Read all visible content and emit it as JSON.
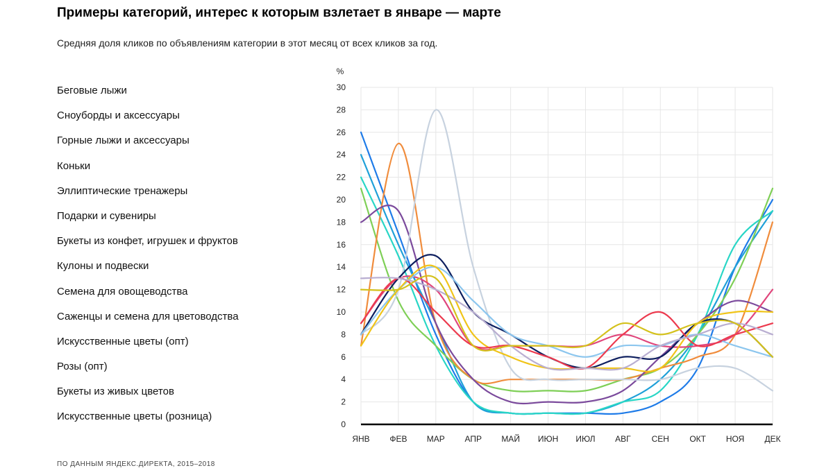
{
  "title": "Примеры категорий, интерес к которым взлетает в январе — марте",
  "subtitle": "Средняя доля кликов по объявлениям категории в этот месяц от всех кликов за год.",
  "source": "ПО ДАННЫМ ЯНДЕКС.ДИРЕКТА, 2015–2018",
  "chart_data": {
    "type": "line",
    "ylabel": "%",
    "ylim": [
      0,
      30
    ],
    "yticks": [
      0,
      2,
      4,
      6,
      8,
      10,
      12,
      14,
      16,
      18,
      20,
      22,
      24,
      26,
      28,
      30
    ],
    "categories": [
      "ЯНВ",
      "ФЕВ",
      "МАР",
      "АПР",
      "МАЙ",
      "ИЮН",
      "ИЮЛ",
      "АВГ",
      "СЕН",
      "ОКТ",
      "НОЯ",
      "ДЕК"
    ],
    "grid": true,
    "legend_position": "left",
    "series": [
      {
        "name": "Беговые лыжи",
        "color": "#1e7be8",
        "values": [
          26,
          17,
          8,
          2,
          1,
          1,
          1,
          1,
          2,
          5,
          14,
          20
        ]
      },
      {
        "name": "Сноуборды и аксессуары",
        "color": "#1fa0d8",
        "values": [
          24,
          16,
          9,
          2,
          1,
          1,
          1,
          2,
          4,
          8,
          14,
          19
        ]
      },
      {
        "name": "Горные лыжи и аксессуары",
        "color": "#29d6c6",
        "values": [
          22,
          15,
          7,
          2,
          1,
          1,
          1,
          2,
          3,
          8,
          16,
          19
        ]
      },
      {
        "name": "Коньки",
        "color": "#7ecf56",
        "values": [
          21,
          11,
          7,
          4,
          3,
          3,
          3,
          4,
          5,
          8,
          13,
          21
        ]
      },
      {
        "name": "Эллиптические тренажеры",
        "color": "#f08c3c",
        "values": [
          7,
          25,
          9,
          4,
          4,
          4,
          4,
          4,
          5,
          6,
          8,
          18
        ]
      },
      {
        "name": "Подарки и сувениры",
        "color": "#7b4a9c",
        "values": [
          18,
          19,
          9,
          4,
          2,
          2,
          2,
          3,
          6,
          9,
          11,
          10
        ]
      },
      {
        "name": "Букеты из конфет, игрушек и фруктов",
        "color": "#e0467c",
        "values": [
          9,
          13,
          12,
          7,
          7,
          7,
          7,
          8,
          7,
          7,
          8,
          12
        ]
      },
      {
        "name": "Кулоны и подвески",
        "color": "#c7d2df",
        "values": [
          8,
          12,
          28,
          14,
          5,
          4,
          4,
          4,
          4,
          5,
          5,
          3
        ]
      },
      {
        "name": "Семена для овощеводства",
        "color": "#0d1e5e",
        "values": [
          8,
          13,
          15,
          10,
          8,
          6,
          5,
          6,
          6,
          9,
          9,
          6
        ]
      },
      {
        "name": "Саженцы и семена для цветоводства",
        "color": "#8cc6ee",
        "values": [
          8,
          12,
          14,
          11,
          8,
          7,
          6,
          7,
          7,
          8,
          7,
          6
        ]
      },
      {
        "name": "Искусственные цветы (опт)",
        "color": "#f0c418",
        "values": [
          7,
          12,
          14,
          8,
          6,
          5,
          5,
          5,
          5,
          9,
          10,
          10
        ]
      },
      {
        "name": "Розы (опт)",
        "color": "#ec3a4e",
        "values": [
          9,
          13,
          10,
          7,
          7,
          6,
          5,
          8,
          10,
          7,
          8,
          9
        ]
      },
      {
        "name": "Букеты из живых цветов",
        "color": "#b9aed1",
        "values": [
          13,
          13,
          12,
          10,
          7,
          5,
          5,
          5,
          7,
          8,
          9,
          8
        ]
      },
      {
        "name": "Искусственные цветы (розница)",
        "color": "#d4c11c",
        "values": [
          12,
          12,
          13,
          7,
          7,
          7,
          7,
          9,
          8,
          9,
          9,
          6
        ]
      }
    ]
  }
}
